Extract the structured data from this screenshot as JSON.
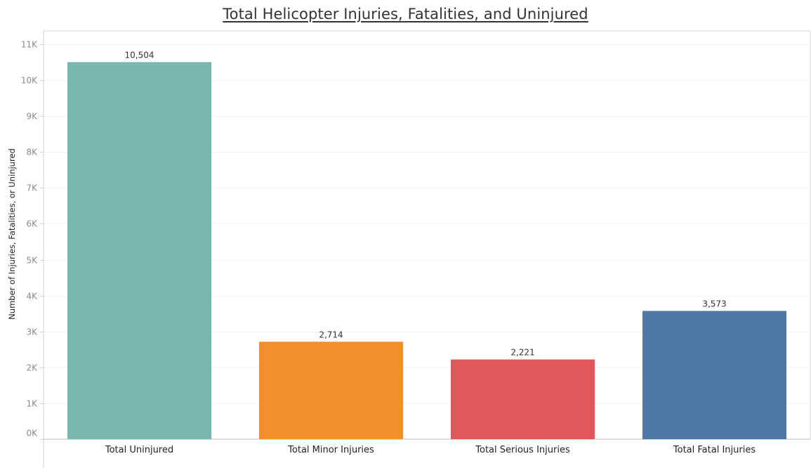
{
  "chart_data": {
    "type": "bar",
    "title": "Total Helicopter Injuries, Fatalities, and Uninjured",
    "xlabel": "",
    "ylabel": "Number of Injuries, Fatalities, or Uninjured",
    "categories": [
      "Total Uninjured",
      "Total Minor Injuries",
      "Total Serious Injuries",
      "Total Fatal Injuries"
    ],
    "values": [
      10504,
      2714,
      2221,
      3573
    ],
    "data_labels": [
      "10,504",
      "2,714",
      "2,221",
      "3,573"
    ],
    "colors": [
      "#7ab6b0",
      "#f28e2d",
      "#e1575a",
      "#4e79a7"
    ],
    "ylim": [
      0,
      11000
    ],
    "yticks": [
      0,
      1000,
      2000,
      3000,
      4000,
      5000,
      6000,
      7000,
      8000,
      9000,
      10000,
      11000
    ],
    "ytick_labels": [
      "0K",
      "1K",
      "2K",
      "3K",
      "4K",
      "5K",
      "6K",
      "7K",
      "8K",
      "9K",
      "10K",
      "11K"
    ],
    "grid": true,
    "legend": "none"
  }
}
